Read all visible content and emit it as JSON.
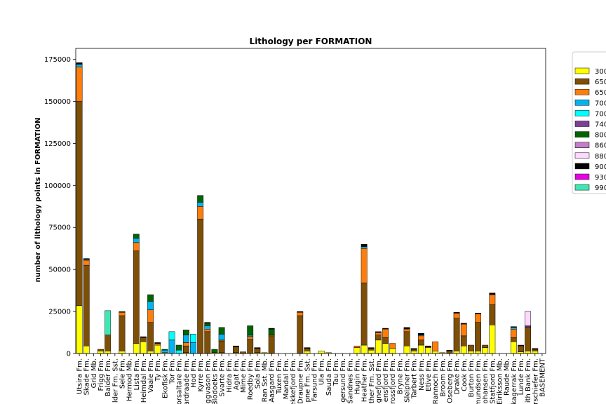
{
  "chart_data": {
    "type": "bar",
    "stacked": true,
    "title": "Lithology per FORMATION",
    "xlabel": "",
    "ylabel": "number of lithology points in FORMATION",
    "ylim": [
      0,
      181500
    ],
    "yticks": [
      0,
      25000,
      50000,
      75000,
      100000,
      125000,
      150000,
      175000
    ],
    "ytick_labels": [
      "0",
      "25000",
      "50000",
      "75000",
      "100000",
      "125000",
      "150000",
      "175000"
    ],
    "legend_position": "right, clipped",
    "categories": [
      "Utsira Fm.",
      "Skade Fm.",
      "Grid Mb.",
      "Frigg Fm.",
      "Balder Fm.",
      "lder Fm. Sst.",
      "Sele Fm.",
      "Hermod Mb.",
      "Lista Fm.",
      "Heimdal Fm.",
      "Vaale Fm.",
      "Ty Fm.",
      "Ekofisk Fm.",
      "Tor Fm.",
      "orsaltare Fm.",
      "ardraade Fm.",
      "Hod Fm.",
      "Kyrre Fm.",
      "ggvason Fm.",
      "Blodoeks Fm.",
      "Svarte Fm.",
      "Hidra Fm.",
      "Agat Fm.",
      "Mime Fm.",
      "Roedby Fm.",
      "Sola Fm.",
      "Ran Sst. Mb.",
      "Aasgard Fm.",
      "Tuxen Fm.",
      "Mandal Fm.",
      "ekkefjord Fm.",
      "Draupne Fm.",
      "pne Fm. Sst.",
      "Farsund Fm.",
      "Ula Fm.",
      "Sauda Fm.",
      "Tau Fm.",
      "gersund Fm.",
      "Sandnes Fm.",
      "Hugin Fm.",
      "Heather Fm.",
      "ther Fm. Sst.",
      "gnefjord Fm.",
      "ensfjord Fm.",
      "krossfjord Fm.",
      "Bryne Fm.",
      "Sleipner Fm.",
      "Tarbert Fm.",
      "Ness Fm.",
      "Etive Fm.",
      "Rannoch Fm.",
      "Broom Fm.",
      "Oseberg Fm.",
      "Drake Fm.",
      "Cook Fm.",
      "Burton Fm.",
      "mundsen Fm.",
      "Johansen Fm.",
      "Statfjord Fm.",
      "Eiriksson Mb.",
      "Raude Mb.",
      "kagerrak Fm.",
      "Lunde Fm.",
      "ith Bank Fm.",
      "erschiefer Fm.",
      "BASEMENT"
    ],
    "series": [
      {
        "name": "300",
        "color": "#ffff00",
        "values": [
          28500,
          4500,
          0,
          1500,
          1500,
          0,
          1500,
          0,
          6000,
          7000,
          1500,
          5000,
          500,
          0,
          0,
          500,
          0,
          0,
          0,
          500,
          500,
          0,
          500,
          0,
          0,
          500,
          500,
          0,
          0,
          0,
          0,
          0,
          1500,
          0,
          1500,
          500,
          0,
          0,
          0,
          3500,
          5000,
          2000,
          8000,
          6000,
          3000,
          0,
          4500,
          1500,
          5000,
          3500,
          1500,
          500,
          0,
          1500,
          4500,
          1500,
          1500,
          3500,
          17000,
          0,
          0,
          7000,
          1000,
          1500,
          1500,
          0
        ]
      },
      {
        "name": "650",
        "color": "#7f4f06",
        "values": [
          121500,
          48000,
          0,
          1000,
          9500,
          0,
          21000,
          0,
          55000,
          2500,
          17000,
          0,
          0,
          0,
          0,
          4000,
          0,
          80000,
          13000,
          0,
          7000,
          0,
          3500,
          1000,
          8500,
          2500,
          0,
          10500,
          0,
          0,
          0,
          22500,
          1500,
          0,
          0,
          0,
          0,
          0,
          0,
          0,
          37000,
          1000,
          3000,
          3500,
          0,
          0,
          8500,
          1000,
          3000,
          0,
          0,
          0,
          1500,
          19500,
          6000,
          3500,
          17000,
          1500,
          12000,
          0,
          0,
          2500,
          3500,
          14000,
          1000,
          0
        ]
      },
      {
        "name": "650",
        "color": "#ff7d0a",
        "values": [
          20500,
          3000,
          0,
          0,
          0,
          0,
          2000,
          0,
          5000,
          0,
          7500,
          1000,
          0,
          0,
          0,
          2000,
          0,
          7500,
          1500,
          0,
          500,
          0,
          0,
          0,
          1500,
          0,
          0,
          500,
          0,
          0,
          0,
          2000,
          0,
          0,
          0,
          0,
          0,
          0,
          0,
          1000,
          20500,
          0,
          1500,
          5000,
          3000,
          0,
          1500,
          0,
          2500,
          500,
          5500,
          0,
          0,
          3000,
          7000,
          0,
          5000,
          0,
          6000,
          0,
          0,
          5000,
          0,
          0,
          0,
          0
        ]
      },
      {
        "name": "700",
        "color": "#00b4f0",
        "values": [
          1500,
          500,
          0,
          0,
          0,
          0,
          0,
          0,
          2500,
          0,
          5000,
          0,
          1500,
          8000,
          0,
          4500,
          6500,
          2500,
          2000,
          0,
          3500,
          0,
          0,
          0,
          500,
          0,
          0,
          0,
          0,
          0,
          0,
          0,
          0,
          0,
          0,
          0,
          0,
          0,
          0,
          0,
          1000,
          0,
          0,
          0,
          0,
          0,
          0,
          0,
          500,
          0,
          0,
          0,
          0,
          0,
          0,
          0,
          0,
          0,
          0,
          0,
          0,
          1000,
          0,
          0,
          0,
          0
        ]
      },
      {
        "name": "700",
        "color": "#00ffff",
        "values": [
          0,
          0,
          0,
          0,
          0,
          0,
          0,
          0,
          0,
          0,
          0,
          0,
          0,
          5000,
          2000,
          0,
          5000,
          0,
          0,
          0,
          0,
          0,
          0,
          0,
          500,
          0,
          0,
          0,
          0,
          0,
          0,
          0,
          0,
          0,
          0,
          0,
          0,
          0,
          0,
          0,
          0,
          0,
          0,
          0,
          0,
          0,
          0,
          0,
          0,
          0,
          0,
          0,
          0,
          0,
          0,
          0,
          0,
          0,
          0,
          0,
          0,
          0,
          0,
          0,
          0,
          0
        ]
      },
      {
        "name": "740",
        "color": "#7f3f98",
        "values": [
          0,
          0,
          0,
          0,
          0,
          0,
          0,
          0,
          0,
          0,
          0,
          0,
          0,
          0,
          0,
          0,
          0,
          0,
          0,
          0,
          0,
          0,
          0,
          0,
          0,
          0,
          0,
          0,
          0,
          0,
          0,
          0,
          0,
          0,
          0,
          0,
          0,
          0,
          0,
          0,
          0,
          0,
          0,
          0,
          0,
          0,
          0,
          0,
          0,
          0,
          0,
          0,
          0,
          0,
          0,
          0,
          0,
          0,
          0,
          0,
          0,
          0,
          0,
          500,
          0,
          0
        ]
      },
      {
        "name": "800",
        "color": "#006400",
        "values": [
          0,
          0,
          0,
          0,
          0,
          0,
          500,
          0,
          2500,
          0,
          4000,
          0,
          500,
          0,
          3000,
          3000,
          0,
          4000,
          1500,
          2000,
          4000,
          0,
          0,
          0,
          5500,
          0,
          0,
          3500,
          0,
          0,
          0,
          0,
          0,
          0,
          0,
          0,
          0,
          0,
          0,
          0,
          0,
          0,
          0,
          0,
          0,
          0,
          0,
          0,
          0,
          0,
          0,
          0,
          0,
          0,
          0,
          0,
          0,
          0,
          0,
          0,
          0,
          0,
          0,
          0,
          0,
          0
        ]
      },
      {
        "name": "860",
        "color": "#c27fc5",
        "values": [
          0,
          0,
          0,
          0,
          0,
          0,
          0,
          0,
          0,
          0,
          0,
          0,
          0,
          0,
          0,
          0,
          0,
          0,
          0,
          0,
          0,
          0,
          0,
          0,
          0,
          0,
          0,
          0,
          0,
          0,
          0,
          0,
          0,
          0,
          0,
          0,
          0,
          0,
          0,
          0,
          0,
          0,
          0,
          0,
          0,
          0,
          0,
          0,
          0,
          0,
          0,
          0,
          0,
          0,
          0,
          0,
          0,
          0,
          0,
          0,
          0,
          0,
          0,
          500,
          0,
          0
        ]
      },
      {
        "name": "880",
        "color": "#ffd8ff",
        "values": [
          0,
          0,
          0,
          0,
          0,
          0,
          0,
          0,
          0,
          0,
          0,
          0,
          0,
          0,
          0,
          0,
          0,
          0,
          0,
          0,
          0,
          0,
          0,
          0,
          0,
          0,
          0,
          0,
          0,
          0,
          0,
          0,
          0,
          0,
          0,
          0,
          0,
          0,
          0,
          0,
          0,
          0,
          0,
          0,
          0,
          0,
          0,
          0,
          0,
          0,
          0,
          0,
          0,
          0,
          0,
          0,
          0,
          0,
          0,
          0,
          0,
          0,
          0,
          8500,
          0,
          0
        ]
      },
      {
        "name": "900",
        "color": "#000000",
        "values": [
          1000,
          500,
          0,
          0,
          0,
          0,
          0,
          0,
          0,
          500,
          0,
          500,
          0,
          0,
          0,
          0,
          0,
          0,
          500,
          0,
          0,
          0,
          500,
          0,
          0,
          500,
          0,
          500,
          0,
          0,
          0,
          500,
          500,
          0,
          0,
          0,
          0,
          0,
          0,
          0,
          1500,
          500,
          500,
          500,
          0,
          0,
          1000,
          500,
          1000,
          500,
          0,
          0,
          500,
          500,
          500,
          0,
          500,
          0,
          1000,
          0,
          0,
          500,
          500,
          0,
          500,
          0
        ]
      },
      {
        "name": "930",
        "color": "#e600e6",
        "values": [
          0,
          0,
          0,
          0,
          0,
          0,
          0,
          0,
          0,
          0,
          0,
          0,
          0,
          0,
          0,
          0,
          0,
          0,
          0,
          0,
          0,
          0,
          0,
          0,
          0,
          0,
          0,
          0,
          0,
          0,
          0,
          0,
          0,
          0,
          0,
          0,
          0,
          0,
          0,
          0,
          0,
          0,
          0,
          0,
          0,
          0,
          0,
          0,
          0,
          0,
          0,
          0,
          0,
          0,
          0,
          0,
          0,
          0,
          0,
          0,
          0,
          0,
          0,
          0,
          0,
          0
        ]
      },
      {
        "name": "990",
        "color": "#3ee8b4",
        "values": [
          0,
          0,
          0,
          0,
          14500,
          0,
          0,
          0,
          0,
          0,
          0,
          0,
          0,
          0,
          0,
          0,
          0,
          0,
          0,
          0,
          0,
          0,
          0,
          0,
          0,
          0,
          0,
          0,
          0,
          0,
          0,
          0,
          0,
          0,
          0,
          0,
          0,
          0,
          0,
          0,
          0,
          0,
          0,
          0,
          0,
          0,
          0,
          0,
          0,
          0,
          0,
          0,
          0,
          0,
          0,
          0,
          0,
          0,
          0,
          0,
          0,
          0,
          0,
          0,
          0,
          0
        ]
      }
    ]
  }
}
